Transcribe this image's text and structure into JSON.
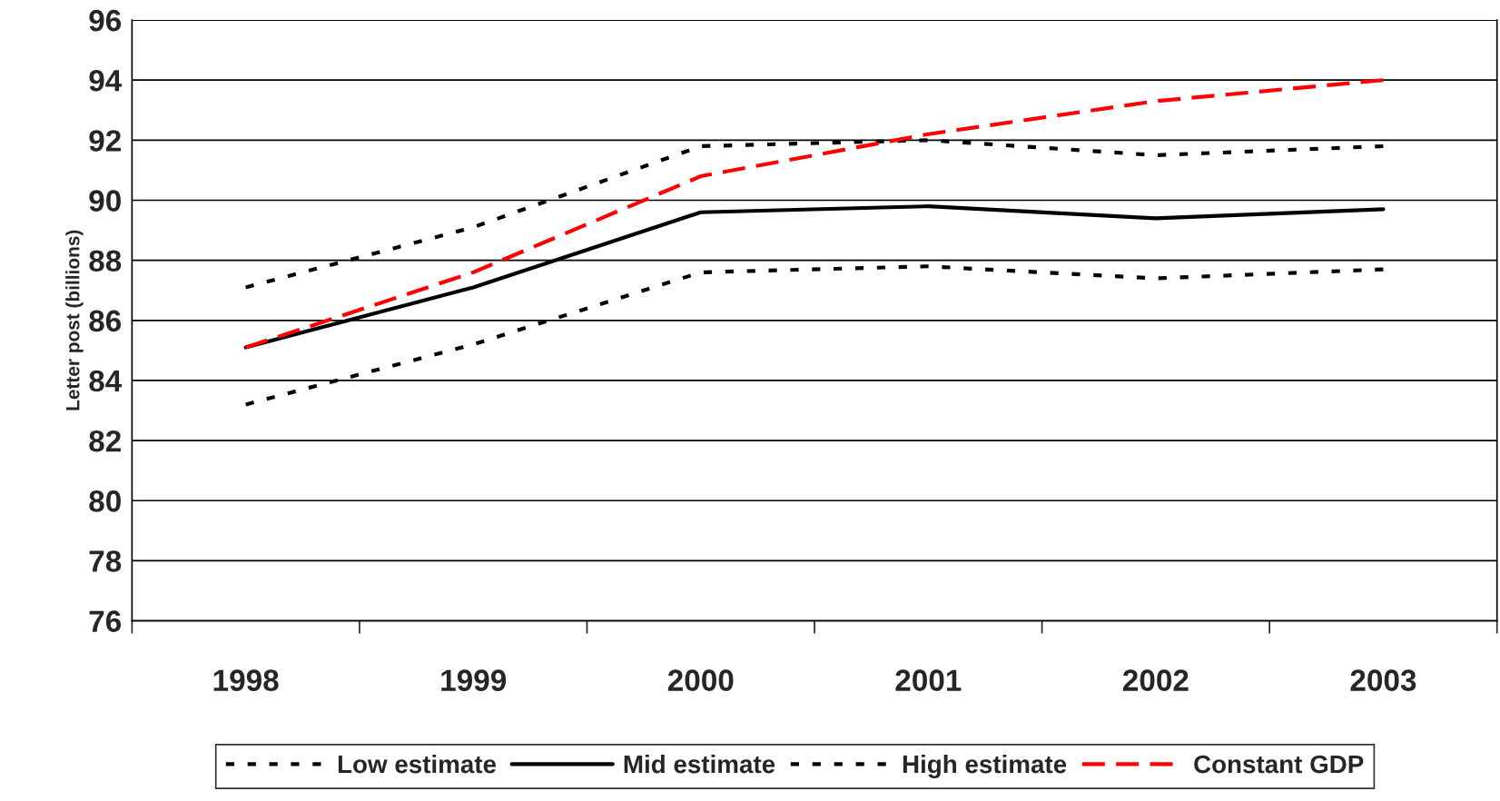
{
  "chart_data": {
    "type": "line",
    "ylabel": "Letter post (billions)",
    "categories": [
      "1998",
      "1999",
      "2000",
      "2001",
      "2002",
      "2003"
    ],
    "series": [
      {
        "name": "Low estimate",
        "color": "#000000",
        "line_style": "dotted",
        "values": [
          83.2,
          85.2,
          87.6,
          87.8,
          87.4,
          87.7
        ]
      },
      {
        "name": "Mid estimate",
        "color": "#000000",
        "line_style": "solid",
        "values": [
          85.1,
          87.1,
          89.6,
          89.8,
          89.4,
          89.7
        ]
      },
      {
        "name": "High estimate",
        "color": "#000000",
        "line_style": "dotted",
        "values": [
          87.1,
          89.1,
          91.8,
          92.0,
          91.5,
          91.8
        ]
      },
      {
        "name": "Constant GDP",
        "color": "#ff0000",
        "line_style": "dashed",
        "values": [
          85.1,
          87.6,
          90.8,
          92.2,
          93.3,
          94.0
        ]
      }
    ],
    "ylim": [
      76,
      96
    ],
    "yticks": [
      76,
      78,
      80,
      82,
      84,
      86,
      88,
      90,
      92,
      94,
      96
    ],
    "grid": "y",
    "legend": "bottom",
    "marker": "none"
  }
}
